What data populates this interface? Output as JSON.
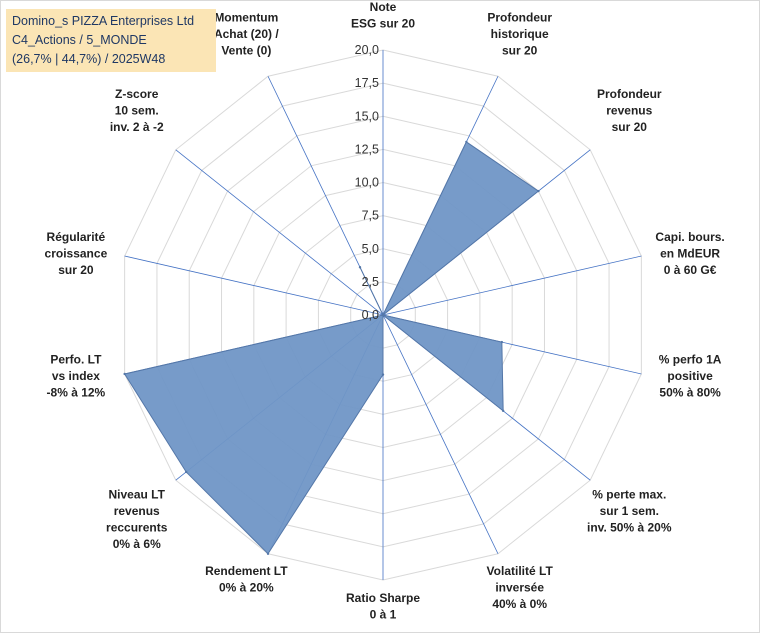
{
  "header": {
    "line1": "Domino_s PIZZA Enterprises Ltd",
    "line2": "C4_Actions / 5_MONDE",
    "line3": "(26,7% | 44,7%) / 2025W48"
  },
  "colors": {
    "fill": "#7096c6",
    "stroke": "#5477a8",
    "spokes": "#4472c4",
    "grid": "#d9d9d9",
    "titlebox": "#fbe5b5"
  },
  "chart_data": {
    "type": "radar",
    "rlim": [
      0,
      20
    ],
    "ticks": [
      "0,0",
      "2,5",
      "5,0",
      "7,5",
      "10,0",
      "12,5",
      "15,0",
      "17,5",
      "20,0"
    ],
    "tick_values": [
      0,
      2.5,
      5,
      7.5,
      10,
      12.5,
      15,
      17.5,
      20
    ],
    "axes": [
      {
        "label": [
          "Note",
          "ESG sur 20"
        ],
        "value": 0
      },
      {
        "label": [
          "Profondeur",
          "historique",
          "sur 20"
        ],
        "value": 14.5
      },
      {
        "label": [
          "Profondeur",
          "revenus",
          "sur 20"
        ],
        "value": 15.0
      },
      {
        "label": [
          "Capi. bours.",
          "en MdEUR",
          "0 à 60 G€"
        ],
        "value": 0
      },
      {
        "label": [
          "% perfo 1A",
          "positive",
          "50% à 80%"
        ],
        "value": 9.2
      },
      {
        "label": [
          "% perte max.",
          "sur 1 sem.",
          "inv. 50% à 20%"
        ],
        "value": 11.6
      },
      {
        "label": [
          "Volatilité LT",
          "inversée",
          "40% à 0%"
        ],
        "value": 0
      },
      {
        "label": [
          "Ratio Sharpe",
          "0 à 1"
        ],
        "value": 4.5
      },
      {
        "label": [
          "Rendement LT",
          "0% à 20%"
        ],
        "value": 20.0
      },
      {
        "label": [
          "Niveau LT",
          "revenus",
          "reccurents",
          "0% à 6%"
        ],
        "value": 19.0
      },
      {
        "label": [
          "Perfo. LT",
          "vs index",
          "-8% à 12%"
        ],
        "value": 20.0
      },
      {
        "label": [
          "Régularité",
          "croissance",
          "sur 20"
        ],
        "value": 0
      },
      {
        "label": [
          "Z-score",
          "10 sem.",
          "inv. 2 à -2"
        ],
        "value": 0
      },
      {
        "label": [
          "Momentum",
          "Achat (20) /",
          "Vente (0)"
        ],
        "value": 4.0
      }
    ]
  }
}
